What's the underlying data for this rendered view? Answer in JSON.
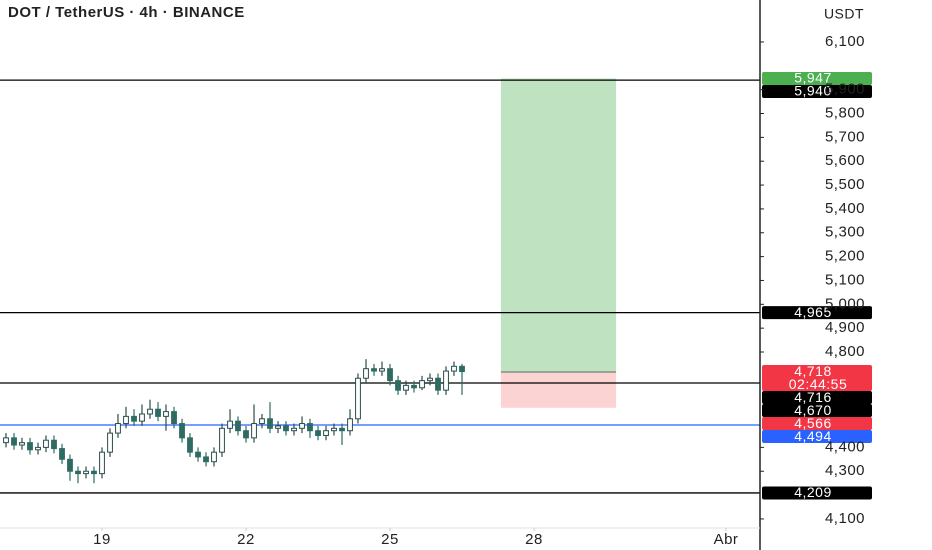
{
  "chart_data": {
    "type": "candlestick",
    "title": "DOT / TetherUS · 4h · BINANCE",
    "y_axis_label": "USDT",
    "up_color": "#2a4d4a",
    "down_color": "#2e6b63",
    "x": [
      17,
      17.167,
      17.333,
      17.5,
      17.667,
      17.833,
      18,
      18.167,
      18.333,
      18.5,
      18.667,
      18.833,
      19,
      19.167,
      19.333,
      19.5,
      19.667,
      19.833,
      20,
      20.167,
      20.333,
      20.5,
      20.667,
      20.833,
      21,
      21.167,
      21.333,
      21.5,
      21.667,
      21.833,
      22,
      22.167,
      22.333,
      22.5,
      22.667,
      22.833,
      23,
      23.167,
      23.333,
      23.5,
      23.667,
      23.833,
      24,
      24.167,
      24.333,
      24.5,
      24.667,
      24.833,
      25,
      25.167,
      25.333,
      25.5,
      25.667,
      25.833,
      26,
      26.167,
      26.333,
      26.5
    ],
    "open": [
      4420,
      4440,
      4410,
      4420,
      4390,
      4400,
      4430,
      4395,
      4350,
      4300,
      4290,
      4300,
      4290,
      4380,
      4460,
      4500,
      4530,
      4510,
      4540,
      4560,
      4530,
      4550,
      4500,
      4440,
      4380,
      4360,
      4340,
      4380,
      4480,
      4510,
      4470,
      4440,
      4500,
      4520,
      4480,
      4490,
      4470,
      4480,
      4500,
      4470,
      4450,
      4470,
      4480,
      4470,
      4520,
      4690,
      4730,
      4720,
      4730,
      4680,
      4640,
      4660,
      4650,
      4680,
      4690,
      4640,
      4720,
      4740
    ],
    "high": [
      4460,
      4460,
      4440,
      4440,
      4420,
      4450,
      4450,
      4415,
      4370,
      4320,
      4320,
      4320,
      4400,
      4480,
      4540,
      4570,
      4560,
      4580,
      4600,
      4590,
      4580,
      4570,
      4520,
      4460,
      4400,
      4380,
      4400,
      4500,
      4560,
      4530,
      4490,
      4580,
      4540,
      4590,
      4510,
      4510,
      4500,
      4530,
      4520,
      4490,
      4490,
      4500,
      4500,
      4560,
      4710,
      4770,
      4750,
      4760,
      4750,
      4700,
      4680,
      4680,
      4700,
      4710,
      4710,
      4740,
      4760,
      4750
    ],
    "low": [
      4400,
      4390,
      4390,
      4370,
      4370,
      4380,
      4375,
      4330,
      4260,
      4250,
      4270,
      4250,
      4270,
      4360,
      4440,
      4480,
      4490,
      4490,
      4520,
      4510,
      4470,
      4480,
      4420,
      4360,
      4340,
      4320,
      4320,
      4360,
      4460,
      4450,
      4420,
      4420,
      4480,
      4460,
      4460,
      4450,
      4450,
      4460,
      4440,
      4430,
      4430,
      4450,
      4410,
      4450,
      4500,
      4670,
      4700,
      4700,
      4660,
      4620,
      4620,
      4630,
      4640,
      4660,
      4620,
      4620,
      4700,
      4620
    ],
    "close": [
      4440,
      4410,
      4420,
      4390,
      4400,
      4430,
      4395,
      4350,
      4300,
      4290,
      4300,
      4290,
      4380,
      4460,
      4500,
      4530,
      4510,
      4540,
      4560,
      4530,
      4550,
      4500,
      4440,
      4380,
      4360,
      4340,
      4380,
      4480,
      4510,
      4470,
      4440,
      4500,
      4520,
      4480,
      4490,
      4470,
      4480,
      4500,
      4470,
      4450,
      4470,
      4480,
      4470,
      4520,
      4690,
      4730,
      4720,
      4730,
      4680,
      4640,
      4660,
      4650,
      4680,
      4690,
      4640,
      4720,
      4740,
      4718
    ],
    "xlim": [
      16.875,
      32.708
    ],
    "xticks": [
      19,
      22,
      25,
      28,
      {
        "value": 32,
        "label": "Abr"
      }
    ],
    "ylim": [
      4062,
      6276
    ],
    "yticks": [
      {
        "value": 4100,
        "label": "4,100"
      },
      {
        "value": 4300,
        "label": "4,300"
      },
      {
        "value": 4400,
        "label": "4,400"
      },
      {
        "value": 4800,
        "label": "4,800"
      },
      {
        "value": 4900,
        "label": "4,900"
      },
      {
        "value": 5000,
        "label": "5,000"
      },
      {
        "value": 5100,
        "label": "5,100"
      },
      {
        "value": 5200,
        "label": "5,200"
      },
      {
        "value": 5300,
        "label": "5,300"
      },
      {
        "value": 5400,
        "label": "5,400"
      },
      {
        "value": 5500,
        "label": "5,500"
      },
      {
        "value": 5600,
        "label": "5,600"
      },
      {
        "value": 5700,
        "label": "5,700"
      },
      {
        "value": 5800,
        "label": "5,800"
      },
      {
        "value": 5900,
        "label": "5,900"
      },
      {
        "value": 6100,
        "label": "6,100"
      }
    ],
    "hlines": [
      {
        "value": 5940,
        "color": "#000000"
      },
      {
        "value": 4965,
        "color": "#000000"
      },
      {
        "value": 4670,
        "color": "#000000"
      },
      {
        "value": 4494,
        "color": "#2962ff"
      },
      {
        "value": 4209,
        "color": "#000000"
      }
    ],
    "position": {
      "entry": 4716,
      "target": 5947,
      "stop": 4566,
      "x_start": 27.31,
      "x_end": 29.71,
      "target_color": "#bfe3c0",
      "stop_color": "#fbd3d3"
    },
    "price_labels": [
      {
        "value": 5947,
        "label": "5,947",
        "color": "#4caf50"
      },
      {
        "value": 5940,
        "label": "5,940",
        "color": "#000000"
      },
      {
        "value": 4965,
        "label": "4,965",
        "color": "#000000"
      },
      {
        "value": 4718,
        "label": "4,718",
        "color": "#f23645",
        "countdown": "02:44:55"
      },
      {
        "value": 4716,
        "label": "4,716",
        "color": "#000000"
      },
      {
        "value": 4670,
        "label": "4,670",
        "color": "#000000"
      },
      {
        "value": 4566,
        "label": "4,566",
        "color": "#f23645"
      },
      {
        "value": 4494,
        "label": "4,494",
        "color": "#2962ff"
      },
      {
        "value": 4209,
        "label": "4,209",
        "color": "#000000"
      }
    ]
  }
}
